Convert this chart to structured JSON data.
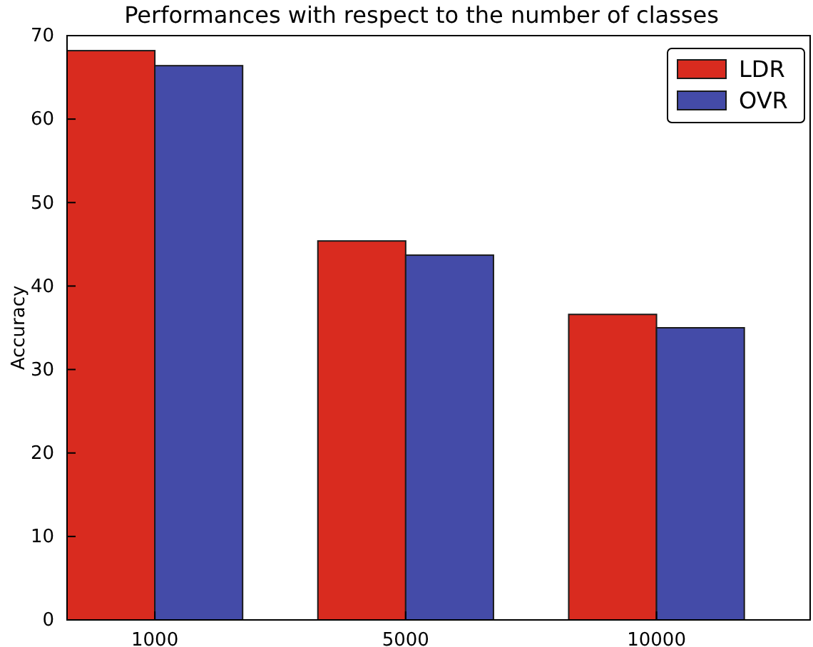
{
  "chart_data": {
    "type": "bar",
    "title": "Performances with respect to the number of classes",
    "ylabel": "Accuracy",
    "categories": [
      "1000",
      "5000",
      "10000"
    ],
    "series": [
      {
        "name": "LDR",
        "color": "#d92b1f",
        "values": [
          68.2,
          45.4,
          36.6
        ]
      },
      {
        "name": "OVR",
        "color": "#444ba8",
        "values": [
          66.4,
          43.7,
          35.0
        ]
      }
    ],
    "ylim": [
      0,
      70
    ],
    "yticks": [
      0,
      10,
      20,
      30,
      40,
      50,
      60,
      70
    ],
    "grid": false,
    "legend": "top right"
  }
}
